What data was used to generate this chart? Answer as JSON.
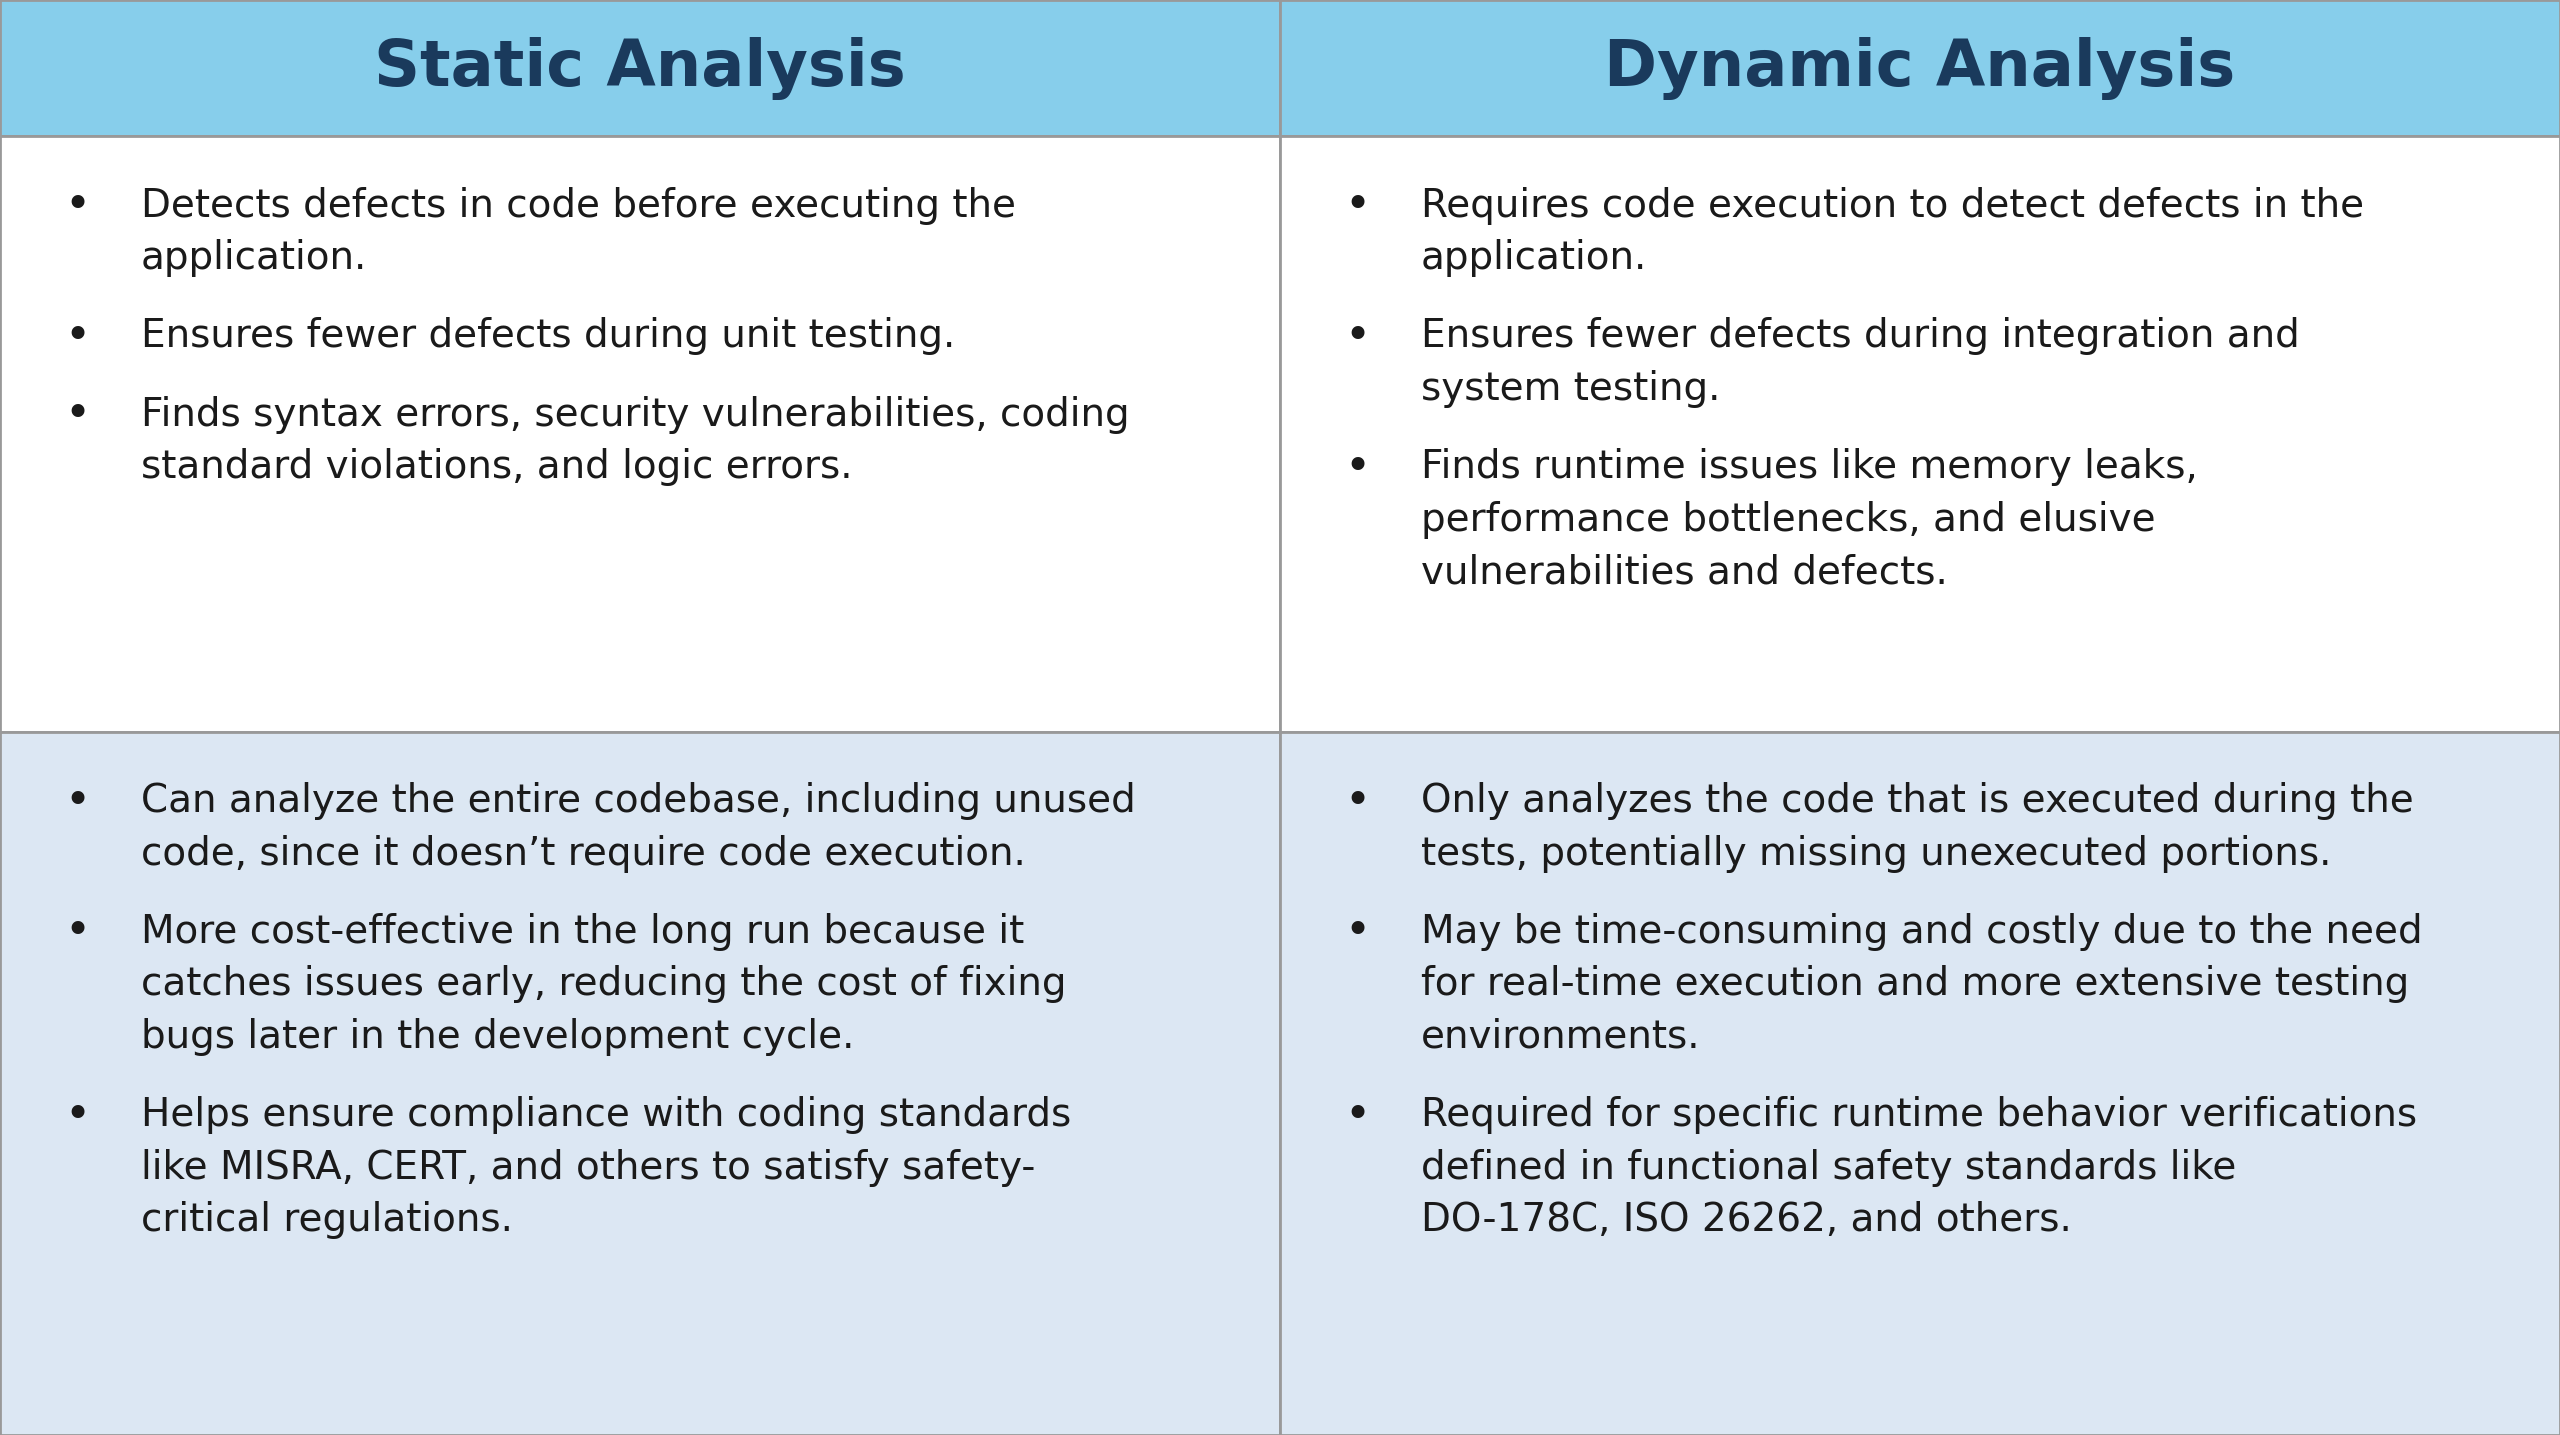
{
  "title_left": "Static Analysis",
  "title_right": "Dynamic Analysis",
  "header_bg": "#87CEEB",
  "header_color": "#1a3a5c",
  "row1_bg": "#ffffff",
  "row2_bg": "#dce7f3",
  "border_color": "#999999",
  "text_color": "#1a1a1a",
  "static_row1": [
    "Detects defects in code before executing the\napplication.",
    "Ensures fewer defects during unit testing.",
    "Finds syntax errors, security vulnerabilities, coding\nstandard violations, and logic errors."
  ],
  "static_row2": [
    "Can analyze the entire codebase, including unused\ncode, since it doesn’t require code execution.",
    "More cost-effective in the long run because it\ncatches issues early, reducing the cost of fixing\nbugs later in the development cycle.",
    "Helps ensure compliance with coding standards\nlike MISRA, CERT, and others to satisfy safety-\ncritical regulations."
  ],
  "dynamic_row1": [
    "Requires code execution to detect defects in the\napplication.",
    "Ensures fewer defects during integration and\nsystem testing.",
    "Finds runtime issues like memory leaks,\nperformance bottlenecks, and elusive\nvulnerabilities and defects."
  ],
  "dynamic_row2": [
    "Only analyzes the code that is executed during the\ntests, potentially missing unexecuted portions.",
    "May be time-consuming and costly due to the need\nfor real-time execution and more extensive testing\nenvironments.",
    "Required for specific runtime behavior verifications\ndefined in functional safety standards like\nDO-178C, ISO 26262, and others."
  ],
  "figsize": [
    25.6,
    14.35
  ],
  "dpi": 100,
  "header_fontsize": 46,
  "body_fontsize": 28,
  "bullet_fontsize": 32
}
